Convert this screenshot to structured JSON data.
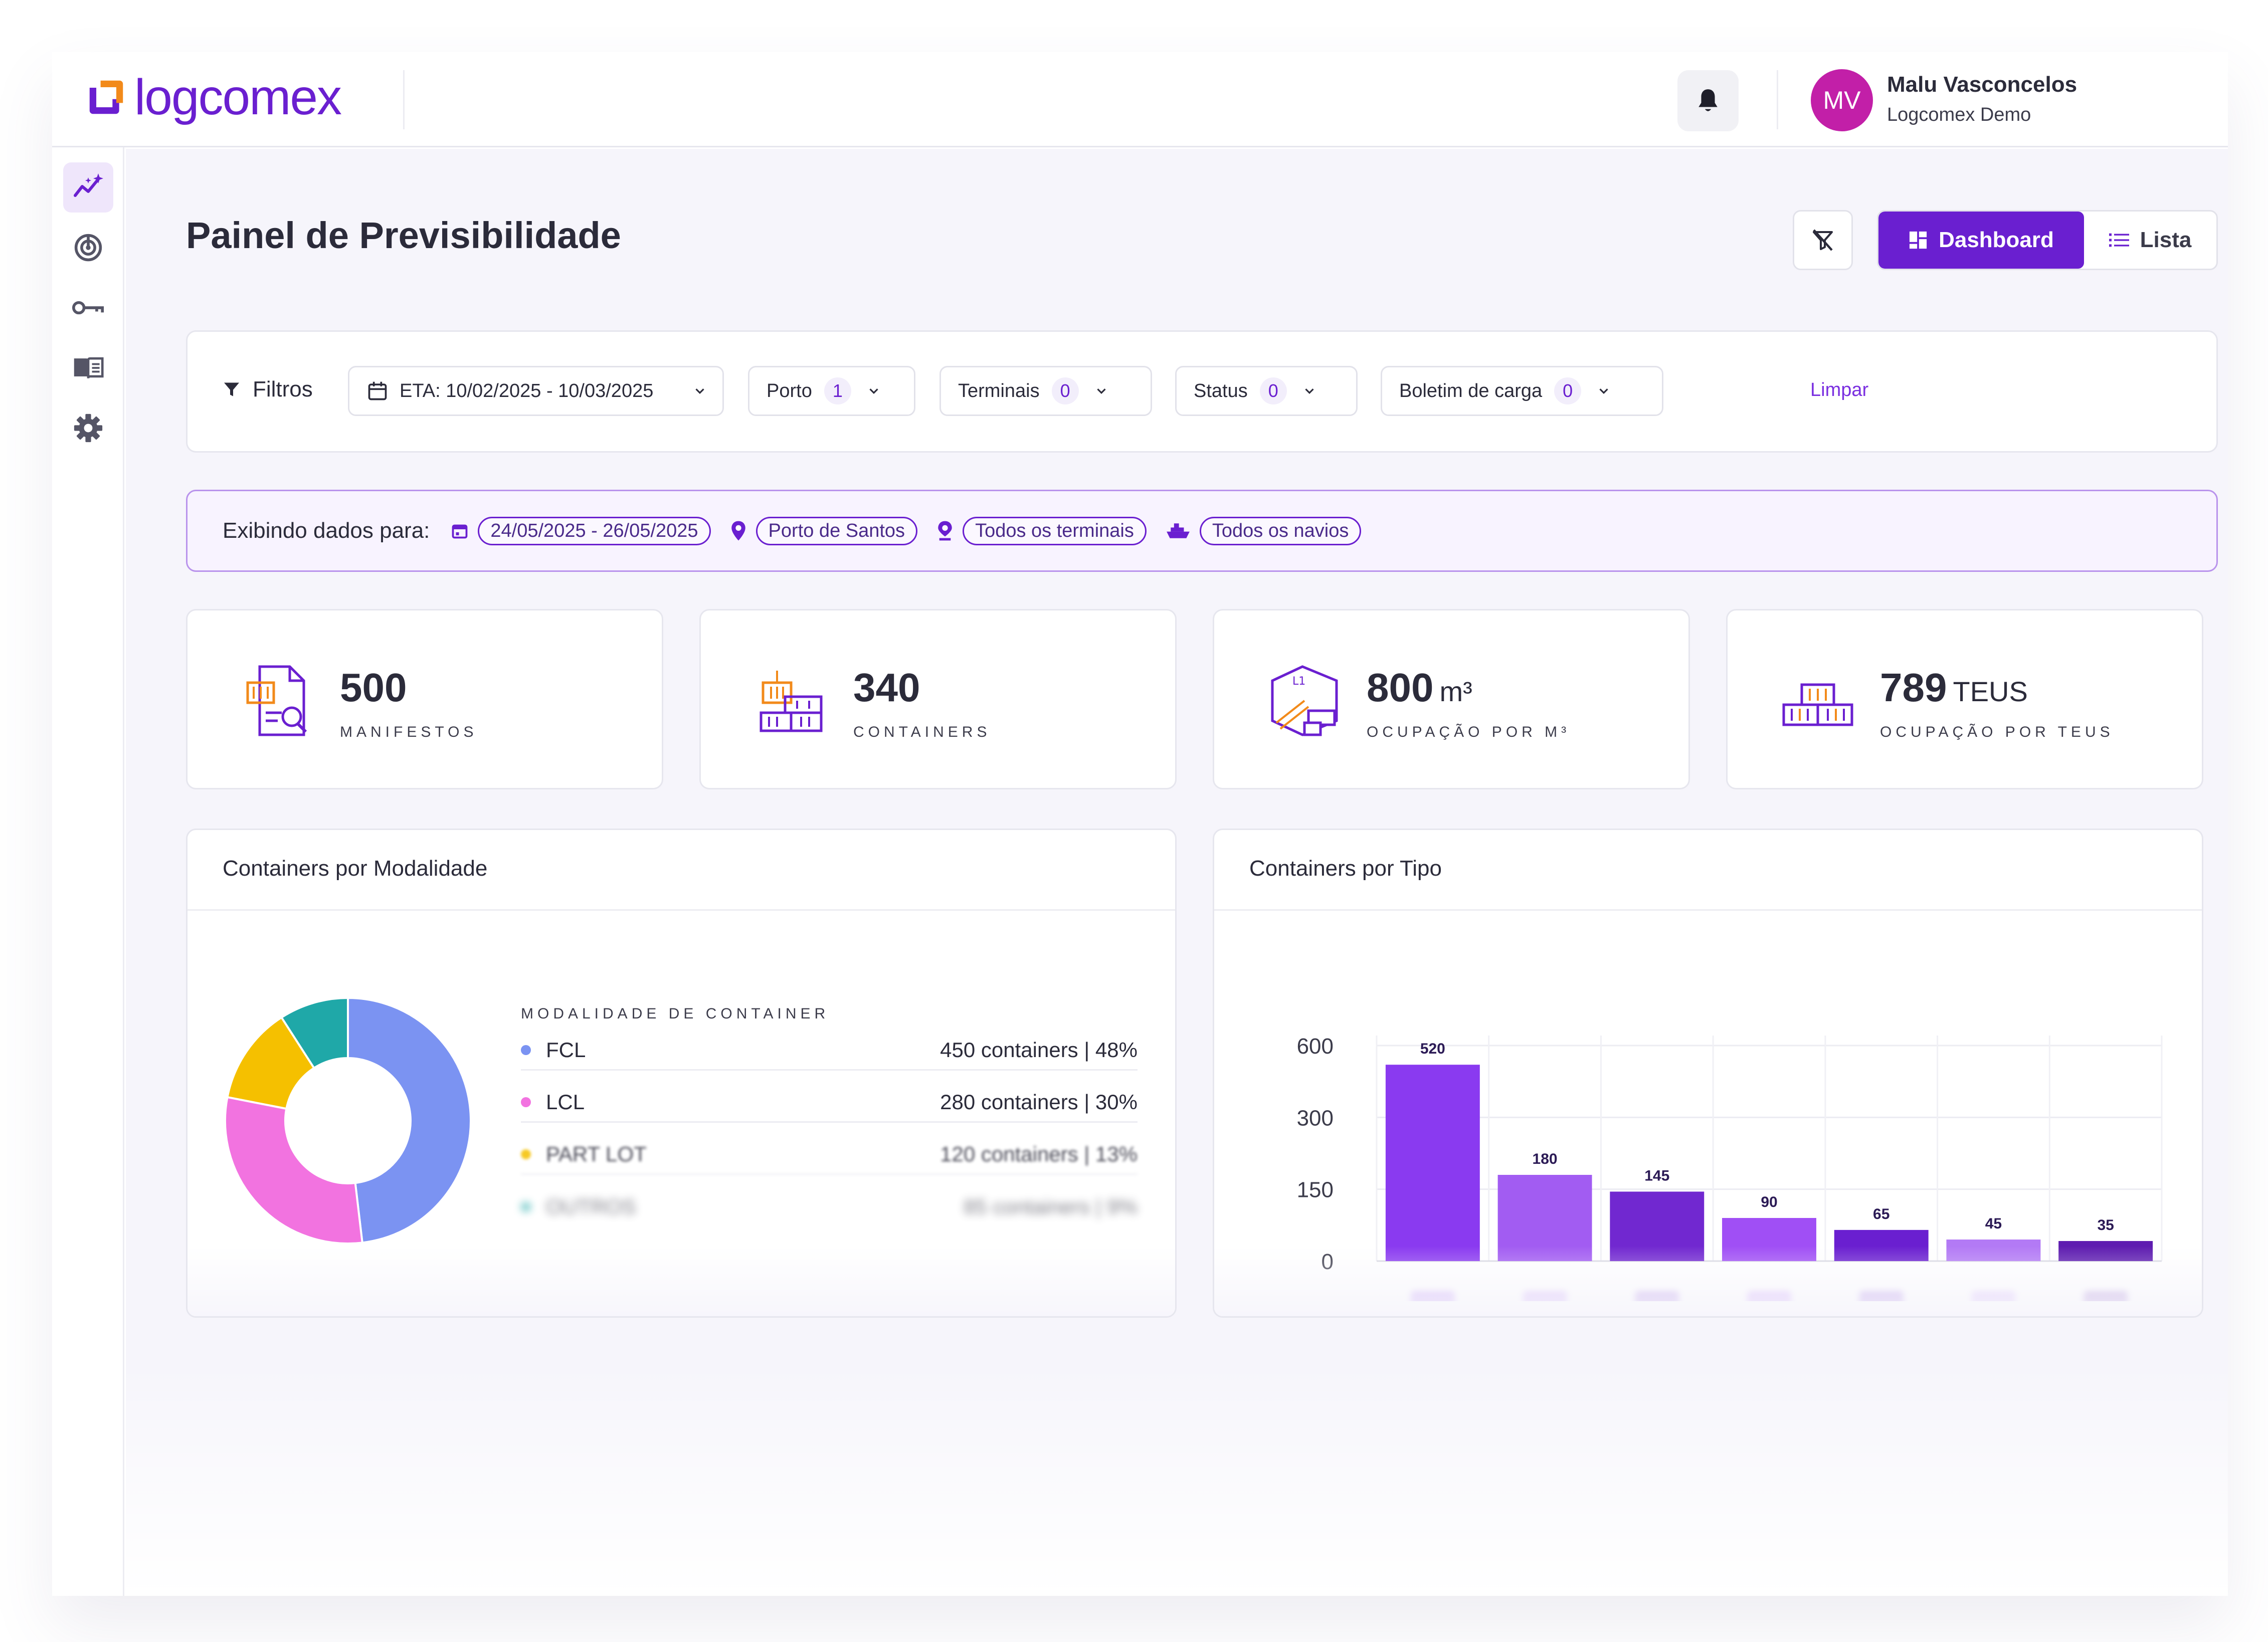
{
  "header": {
    "logo_text": "logcomex",
    "user": {
      "initials": "MV",
      "name": "Malu Vasconcelos",
      "org": "Logcomex Demo"
    },
    "icons": {
      "notifications": "bell-icon"
    }
  },
  "sidebar": {
    "items": [
      {
        "icon": "sparkle-chart-icon",
        "active": true
      },
      {
        "icon": "radar-icon",
        "active": false
      },
      {
        "icon": "key-icon",
        "active": false
      },
      {
        "icon": "book-icon",
        "active": false
      },
      {
        "icon": "gear-icon",
        "active": false
      }
    ]
  },
  "page": {
    "title": "Painel de Previsibilidade",
    "view_toggle": {
      "dashboard_label": "Dashboard",
      "lista_label": "Lista",
      "active": "Dashboard"
    }
  },
  "filters": {
    "label": "Filtros",
    "eta": "ETA: 10/02/2025 - 10/03/2025",
    "porto": {
      "label": "Porto",
      "count": "1"
    },
    "terminais": {
      "label": "Terminais",
      "count": "0"
    },
    "status": {
      "label": "Status",
      "count": "0"
    },
    "boletim": {
      "label": "Boletim de carga",
      "count": "0"
    },
    "clear_label": "Limpar"
  },
  "info_bar": {
    "label": "Exibindo dados para:",
    "period": "24/05/2025 - 26/05/2025",
    "port": "Porto de Santos",
    "terminals": "Todos os terminais",
    "ships": "Todos os navios"
  },
  "kpis": [
    {
      "value": "500",
      "unit": "",
      "label": "MANIFESTOS",
      "icon": "manifest-icon"
    },
    {
      "value": "340",
      "unit": "",
      "label": "CONTAINERS",
      "icon": "containers-icon"
    },
    {
      "value": "800",
      "unit": "m³",
      "label": "OCUPAÇÃO POR M³",
      "icon": "cubic-occupancy-icon"
    },
    {
      "value": "789",
      "unit": "TEUS",
      "label": "OCUPAÇÃO POR TEUS",
      "icon": "teus-icon"
    }
  ],
  "modalidade_card": {
    "title": "Containers por Modalidade",
    "legend_title": "MODALIDADE DE CONTAINER",
    "rows": [
      {
        "name": "FCL",
        "value": "450 containers | 48%",
        "color": "#7b93f2"
      },
      {
        "name": "LCL",
        "value": "280 containers | 30%",
        "color": "#f273e0"
      },
      {
        "name": "PART LOT",
        "value": "120 containers | 13%",
        "color": "#f5c000"
      },
      {
        "name": "OUTROS",
        "value": "85 containers | 9%",
        "color": "#1fa8a8"
      }
    ]
  },
  "tipo_card": {
    "title": "Containers por Tipo"
  },
  "chart_data": [
    {
      "type": "pie",
      "labels": [
        "FCL",
        "LCL",
        "PART LOT",
        "OUTROS"
      ],
      "values": [
        450,
        280,
        120,
        85
      ],
      "percents": [
        48,
        30,
        13,
        9
      ],
      "colors": [
        "#7b93f2",
        "#f273e0",
        "#f5c000",
        "#1fa8a8"
      ],
      "donut": true
    },
    {
      "type": "bar",
      "categories": [
        "Dry",
        "HC",
        "Reefer",
        "Open Top",
        "Tank",
        "Flat",
        "Outros"
      ],
      "values": [
        520,
        180,
        145,
        90,
        65,
        45,
        35
      ],
      "y_ticks": [
        "600",
        "300",
        "150",
        "0"
      ],
      "grid": true,
      "colors": [
        "#8a3af0",
        "#a25cf2",
        "#7128d0",
        "#a04ff5",
        "#6a1fd0",
        "#b37af5",
        "#5e1cb0"
      ]
    }
  ]
}
